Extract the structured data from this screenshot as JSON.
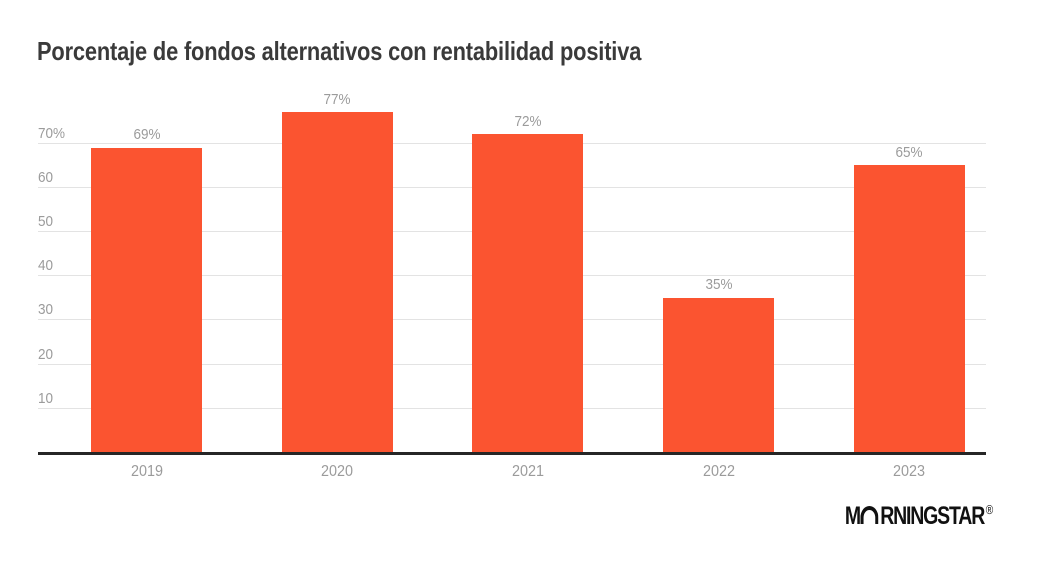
{
  "title": "Porcentaje de fondos alternativos con rentabilidad positiva",
  "colors": {
    "background": "#ffffff",
    "bar": "#fb5430",
    "gridline": "#e3e3e3",
    "axis_line": "#262626",
    "axis_label": "#9b9b9b",
    "title_text": "#3a3a3a",
    "logo": "#111111"
  },
  "chart_data": {
    "type": "bar",
    "title": "Porcentaje de fondos alternativos con rentabilidad positiva",
    "categories": [
      "2019",
      "2020",
      "2021",
      "2022",
      "2023"
    ],
    "values": [
      69,
      77,
      72,
      35,
      65
    ],
    "value_labels": [
      "69%",
      "77%",
      "72%",
      "35%",
      "65%"
    ],
    "xlabel": "",
    "ylabel": "",
    "ylim": [
      0,
      80
    ],
    "yticks": [
      {
        "value": 10,
        "label": "10"
      },
      {
        "value": 20,
        "label": "20"
      },
      {
        "value": 30,
        "label": "30"
      },
      {
        "value": 40,
        "label": "40"
      },
      {
        "value": 50,
        "label": "50"
      },
      {
        "value": 60,
        "label": "60"
      },
      {
        "value": 70,
        "label": "70%"
      }
    ],
    "grid": true,
    "legend": false
  },
  "branding": {
    "logo_m": "M",
    "logo_rest": "RNINGSTAR",
    "registered": "®"
  }
}
